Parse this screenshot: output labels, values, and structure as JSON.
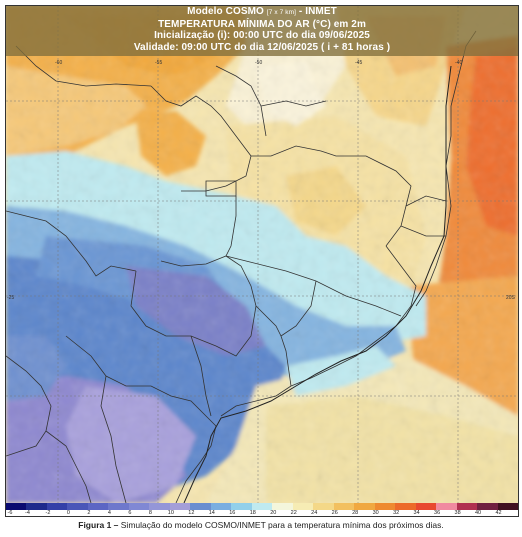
{
  "header": {
    "line1": "Modelo COSMO",
    "line1_small": "[7 x 7 km]",
    "line1_rest": "- INMET",
    "line2": "TEMPERATURA MÍNIMA DO AR (°C) em 2m",
    "line3": "Inicialização (i): 00:00 UTC do dia 09/06/2025",
    "line4": "Validade: 09:00 UTC do dia 12/06/2025 ( i + 81 horas )"
  },
  "colorbar": {
    "ticks": [
      "-6",
      "-4",
      "-2",
      "0",
      "2",
      "4",
      "6",
      "8",
      "10",
      "12",
      "14",
      "16",
      "18",
      "20",
      "22",
      "24",
      "26",
      "28",
      "30",
      "32",
      "34",
      "36",
      "38",
      "40",
      "42"
    ],
    "colors": [
      "#0a0a70",
      "#1e2a8c",
      "#3440a8",
      "#4a56b8",
      "#5c66c4",
      "#6e78cc",
      "#8088d4",
      "#9496d8",
      "#a49ed8",
      "#6a8ed0",
      "#7aaee0",
      "#92d0ea",
      "#bfeaf0",
      "#f4f6dc",
      "#f6ecb4",
      "#f4d888",
      "#f2c060",
      "#f0a840",
      "#ee8a30",
      "#ec6a2a",
      "#e84830",
      "#f08aa0",
      "#b03050",
      "#702040",
      "#401020"
    ]
  },
  "map_labels": {
    "lon_ticks": [
      "-60",
      "-55",
      "-50",
      "-45",
      "-40"
    ],
    "lat_tick_left": "-25",
    "lat_tick_right": "20S"
  },
  "caption": {
    "bold": "Figura 1 –",
    "text": " Simulação do modelo COSMO/INMET para a temperatura mínima dos próximos dias."
  },
  "palette": {
    "orange": "#f4b04a",
    "light_orange": "#f6c878",
    "pale_yellow": "#f6e6b0",
    "cream": "#faf2d6",
    "cyan": "#bfeaf0",
    "light_blue": "#84b4e0",
    "mid_blue": "#5c86cc",
    "purple": "#8e88d0",
    "lavender": "#a8a0dc",
    "hot_orange": "#ee6e2e",
    "red_orange": "#f08a3a"
  }
}
